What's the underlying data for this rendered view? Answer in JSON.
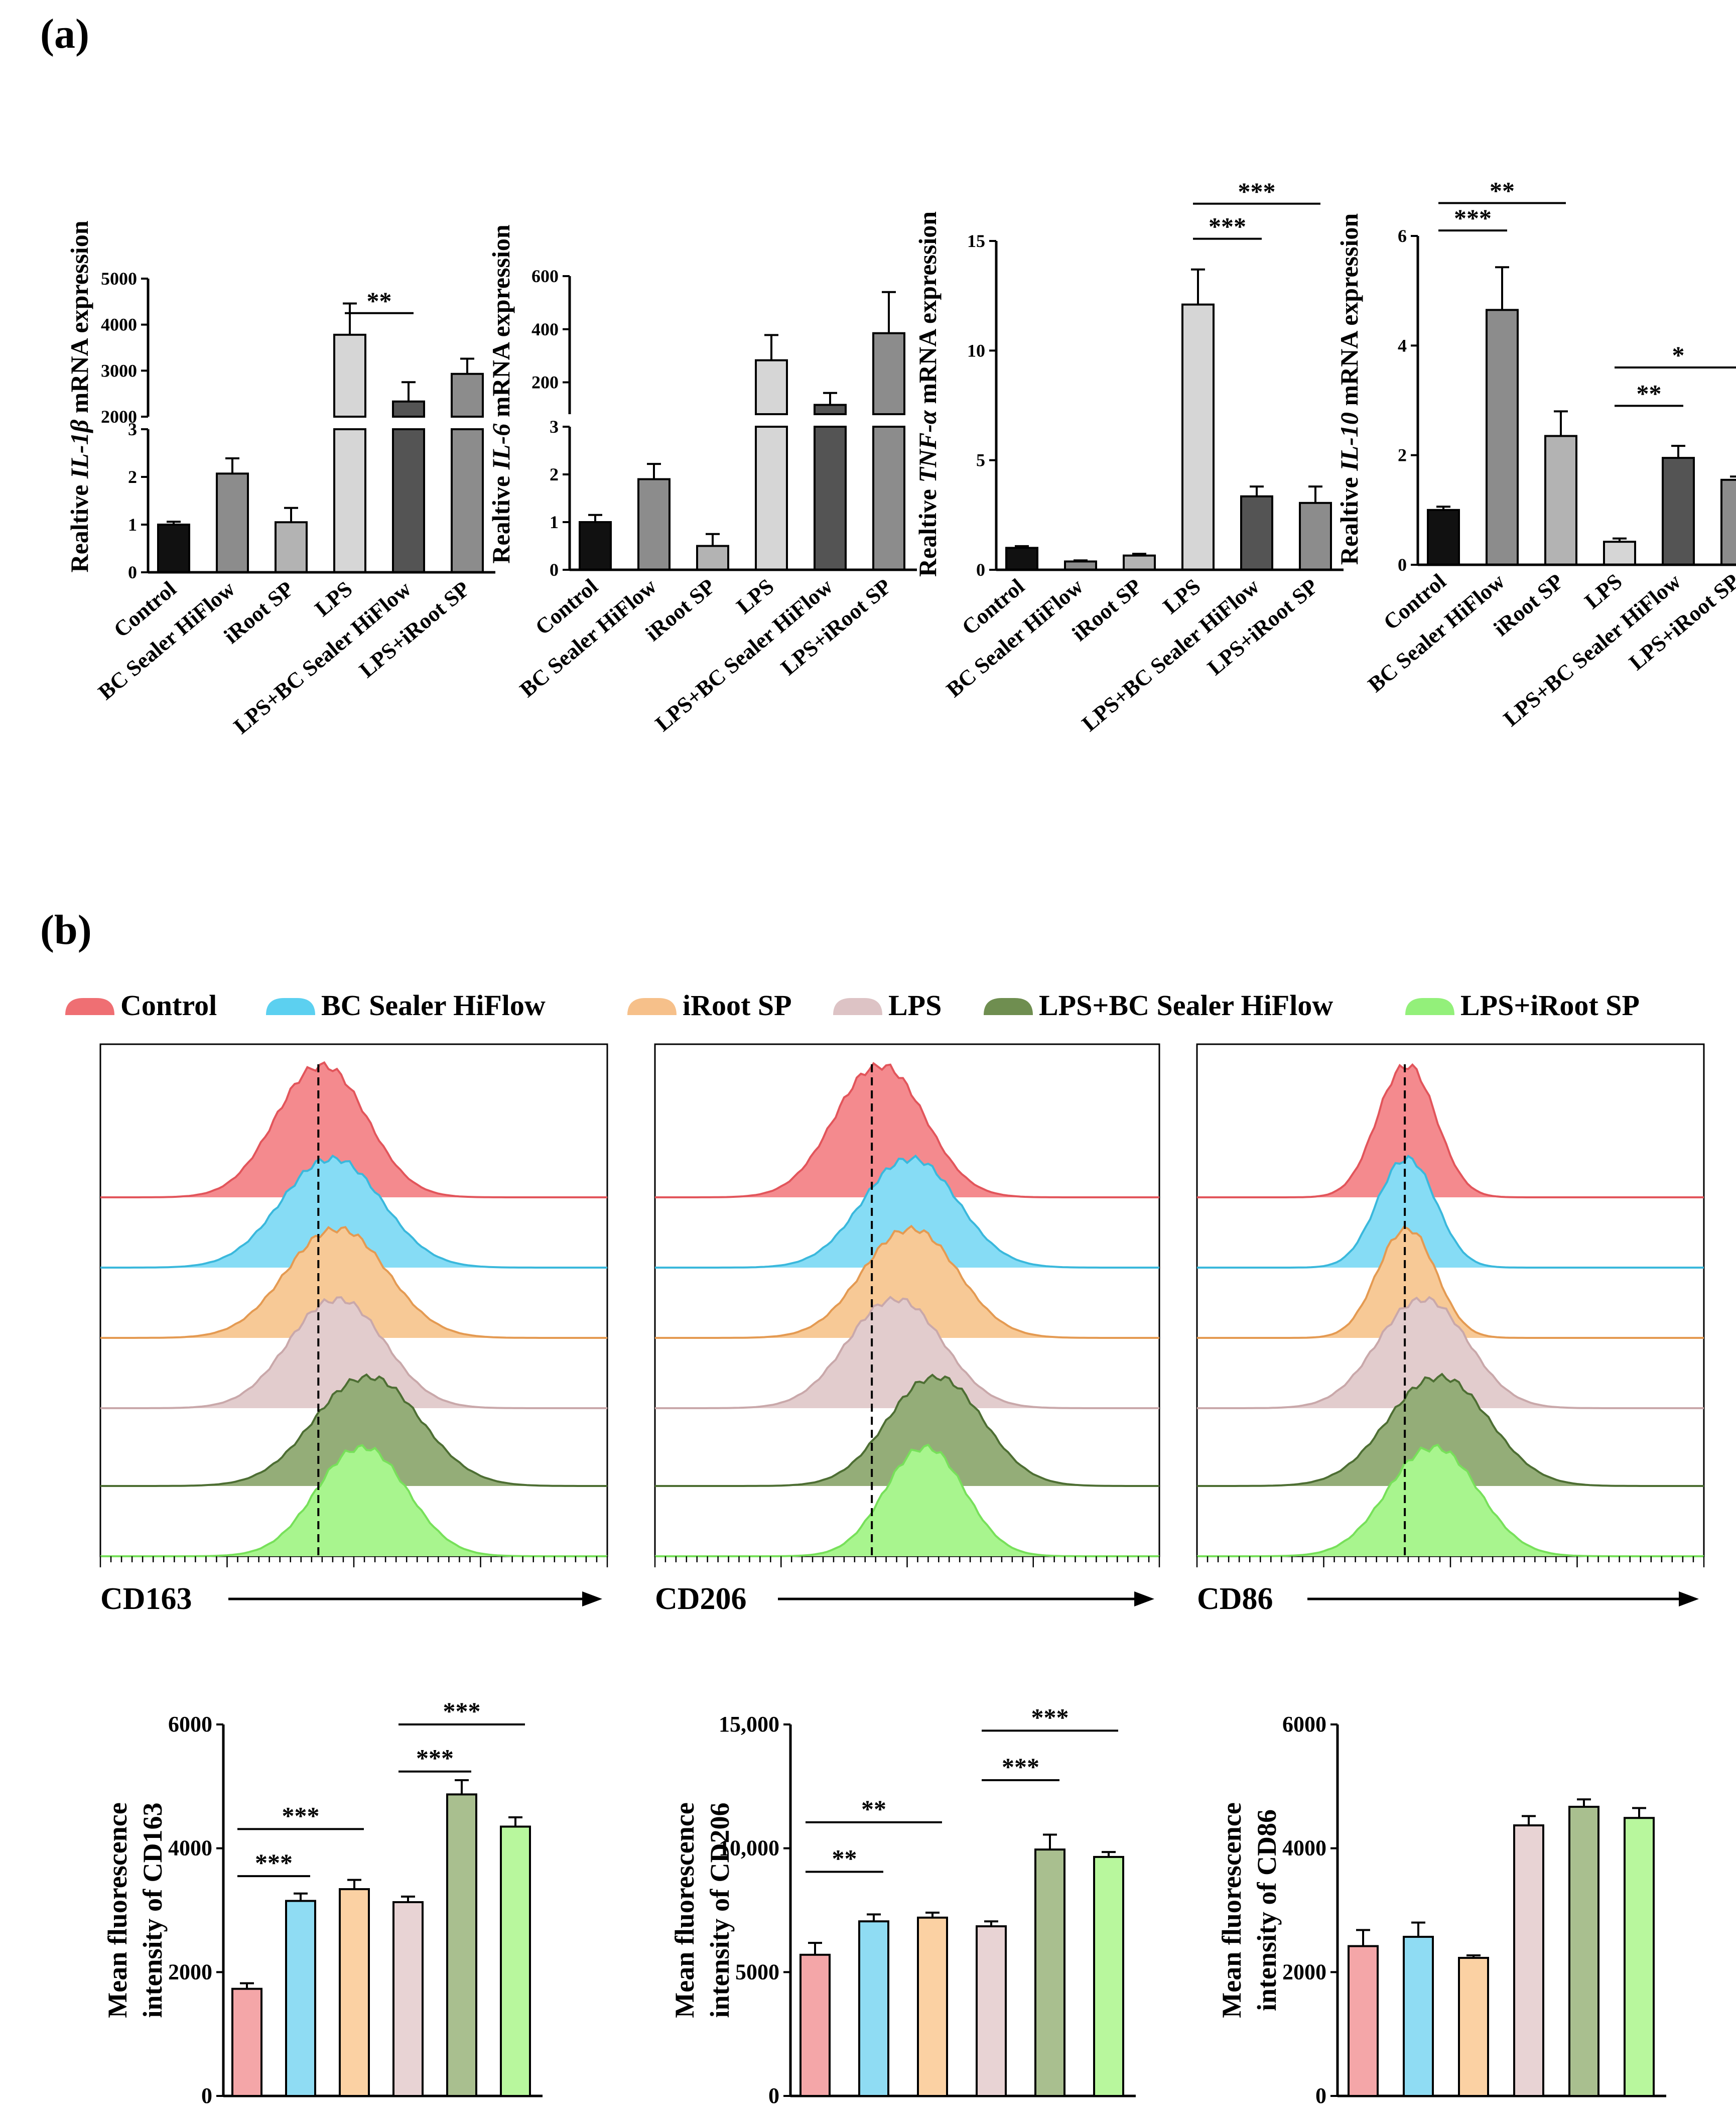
{
  "panel_labels": {
    "a": "(a)",
    "b": "(b)"
  },
  "groups": [
    "Control",
    "BC Sealer HiFlow",
    "iRoot SP",
    "LPS",
    "LPS+BC Sealer HiFlow",
    "LPS+iRoot SP"
  ],
  "group_colors": [
    "#f4a6a8",
    "#8fdcf3",
    "#fbd1a3",
    "#e8d3d4",
    "#a9bf8f",
    "#b8f79d"
  ],
  "legend": {
    "items": [
      "Control",
      "BC Sealer HiFlow",
      "iRoot SP",
      "LPS",
      "LPS+BC Sealer HiFlow",
      "LPS+iRoot SP"
    ],
    "colors": [
      "#ef6f73",
      "#5cd0f0",
      "#f6c08a",
      "#ddc3c5",
      "#6f8e50",
      "#93f07a"
    ]
  },
  "flow": {
    "panels": [
      {
        "marker": "CD163",
        "peaks": [
          0.43,
          0.45,
          0.46,
          0.46,
          0.52,
          0.51
        ],
        "widths": [
          0.085,
          0.095,
          0.095,
          0.09,
          0.1,
          0.085
        ],
        "ref_line": 0.43
      },
      {
        "marker": "CD206",
        "peaks": [
          0.44,
          0.5,
          0.5,
          0.47,
          0.55,
          0.53
        ],
        "widths": [
          0.085,
          0.09,
          0.09,
          0.09,
          0.09,
          0.075
        ],
        "ref_line": 0.43
      },
      {
        "marker": "CD86",
        "peaks": [
          0.41,
          0.41,
          0.41,
          0.44,
          0.47,
          0.46
        ],
        "widths": [
          0.055,
          0.055,
          0.055,
          0.085,
          0.095,
          0.085
        ],
        "ref_line": 0.41
      }
    ],
    "fill_colors": [
      "#f48a8e",
      "#86dcf5",
      "#f7c996",
      "#e2cccd",
      "#94ad78",
      "#a8f58e"
    ],
    "stroke_colors": [
      "#e2555b",
      "#3ab8dc",
      "#e49a52",
      "#c9a8aa",
      "#4d6e33",
      "#77e05a"
    ]
  },
  "chart_data": [
    {
      "type": "bar",
      "panel": "a",
      "title": "",
      "ylabel_parts": [
        "Realtive ",
        "IL-1β",
        " mRNA expression"
      ],
      "categories": [
        "Control",
        "BC Sealer HiFlow",
        "iRoot SP",
        "LPS",
        "LPS+BC Sealer HiFlow",
        "LPS+iRoot SP"
      ],
      "values": [
        1.0,
        2.07,
        1.05,
        3780,
        2330,
        2930
      ],
      "errors": [
        0.06,
        0.32,
        0.3,
        680,
        420,
        330
      ],
      "bar_colors": [
        "#111111",
        "#8c8c8c",
        "#b3b3b3",
        "#d6d6d6",
        "#545454",
        "#8c8c8c"
      ],
      "broken_axis": {
        "lower": [
          0,
          3
        ],
        "upper": [
          2000,
          5000
        ]
      },
      "ticks_lower": [
        {
          "v": 0,
          "label": "0"
        },
        {
          "v": 1,
          "label": "1"
        },
        {
          "v": 2,
          "label": "2"
        },
        {
          "v": 3,
          "label": "3"
        }
      ],
      "ticks_upper": [
        {
          "v": 2000,
          "label": "2000"
        },
        {
          "v": 3000,
          "label": "3000"
        },
        {
          "v": 4000,
          "label": "4000"
        },
        {
          "v": 5000,
          "label": "5000"
        }
      ],
      "significance": [
        {
          "from": 3,
          "to": 4,
          "label": "**",
          "y": 4250
        }
      ]
    },
    {
      "type": "bar",
      "panel": "a",
      "title": "",
      "ylabel_parts": [
        "Realtive ",
        "IL-6",
        " mRNA expression"
      ],
      "categories": [
        "Control",
        "BC Sealer HiFlow",
        "iRoot SP",
        "LPS",
        "LPS+BC Sealer HiFlow",
        "LPS+iRoot SP"
      ],
      "values": [
        1.0,
        1.9,
        0.5,
        283,
        115,
        385
      ],
      "errors": [
        0.15,
        0.32,
        0.25,
        95,
        45,
        155
      ],
      "bar_colors": [
        "#111111",
        "#8c8c8c",
        "#b3b3b3",
        "#d6d6d6",
        "#545454",
        "#8c8c8c"
      ],
      "broken_axis": {
        "lower": [
          0,
          3
        ],
        "upper": [
          80,
          600
        ]
      },
      "ticks_lower": [
        {
          "v": 0,
          "label": "0"
        },
        {
          "v": 1,
          "label": "1"
        },
        {
          "v": 2,
          "label": "2"
        },
        {
          "v": 3,
          "label": "3"
        }
      ],
      "ticks_upper": [
        {
          "v": 200,
          "label": "200"
        },
        {
          "v": 400,
          "label": "400"
        },
        {
          "v": 600,
          "label": "600"
        }
      ],
      "significance": []
    },
    {
      "type": "bar",
      "panel": "a",
      "title": "",
      "ylabel_parts": [
        "Realtive ",
        "TNF-α",
        " mRNA expression"
      ],
      "categories": [
        "Control",
        "BC Sealer HiFlow",
        "iRoot SP",
        "LPS",
        "LPS+BC Sealer HiFlow",
        "LPS+iRoot SP"
      ],
      "values": [
        1.0,
        0.38,
        0.65,
        12.1,
        3.35,
        3.05
      ],
      "errors": [
        0.08,
        0.05,
        0.08,
        1.6,
        0.45,
        0.75
      ],
      "bar_colors": [
        "#111111",
        "#8c8c8c",
        "#b3b3b3",
        "#d6d6d6",
        "#545454",
        "#8c8c8c"
      ],
      "ylim": [
        0,
        15
      ],
      "ticks": [
        {
          "v": 0,
          "label": "0"
        },
        {
          "v": 5,
          "label": "5"
        },
        {
          "v": 10,
          "label": "10"
        },
        {
          "v": 15,
          "label": "15"
        }
      ],
      "significance": [
        {
          "from": 3,
          "to": 4,
          "label": "***",
          "y": 15.1
        },
        {
          "from": 3,
          "to": 5,
          "label": "***",
          "y": 16.7
        }
      ]
    },
    {
      "type": "bar",
      "panel": "a",
      "title": "",
      "ylabel_parts": [
        "Realtive ",
        "IL-10",
        " mRNA expression"
      ],
      "categories": [
        "Control",
        "BC Sealer HiFlow",
        "iRoot SP",
        "LPS",
        "LPS+BC Sealer HiFlow",
        "LPS+iRoot SP"
      ],
      "values": [
        1.0,
        4.65,
        2.35,
        0.42,
        1.95,
        1.55
      ],
      "errors": [
        0.06,
        0.78,
        0.45,
        0.06,
        0.22,
        0.06
      ],
      "bar_colors": [
        "#111111",
        "#8c8c8c",
        "#b3b3b3",
        "#d6d6d6",
        "#545454",
        "#8c8c8c"
      ],
      "ylim": [
        0,
        6
      ],
      "ticks": [
        {
          "v": 0,
          "label": "0"
        },
        {
          "v": 2,
          "label": "2"
        },
        {
          "v": 4,
          "label": "4"
        },
        {
          "v": 6,
          "label": "6"
        }
      ],
      "significance": [
        {
          "from": 0,
          "to": 1,
          "label": "***",
          "y": 6.1
        },
        {
          "from": 0,
          "to": 2,
          "label": "**",
          "y": 6.6
        },
        {
          "from": 3,
          "to": 4,
          "label": "**",
          "y": 2.9
        },
        {
          "from": 3,
          "to": 5,
          "label": "*",
          "y": 3.6
        }
      ]
    },
    {
      "type": "bar",
      "panel": "b",
      "title": "",
      "ylabel_lines": [
        "Mean fluorescence",
        "intensity of CD163"
      ],
      "categories": [
        "Control",
        "BC Sealer HiFlow",
        "iRoot SP",
        "LPS",
        "LPS+BC Sealer HiFlow",
        "LPS+iRoot SP"
      ],
      "values": [
        1730,
        3150,
        3340,
        3130,
        4870,
        4350
      ],
      "errors": [
        90,
        120,
        150,
        90,
        230,
        150
      ],
      "ylim": [
        0,
        6000
      ],
      "ticks": [
        {
          "v": 0,
          "label": "0"
        },
        {
          "v": 2000,
          "label": "2000"
        },
        {
          "v": 4000,
          "label": "4000"
        },
        {
          "v": 6000,
          "label": "6000"
        }
      ],
      "significance": [
        {
          "from": 0,
          "to": 1,
          "label": "***",
          "y": 3550
        },
        {
          "from": 0,
          "to": 2,
          "label": "***",
          "y": 4310
        },
        {
          "from": 3,
          "to": 4,
          "label": "***",
          "y": 5240
        },
        {
          "from": 3,
          "to": 5,
          "label": "***",
          "y": 6000
        }
      ]
    },
    {
      "type": "bar",
      "panel": "b",
      "title": "",
      "ylabel_lines": [
        "Mean fluorescence",
        "intensity of CD206"
      ],
      "categories": [
        "Control",
        "BC Sealer HiFlow",
        "iRoot SP",
        "LPS",
        "LPS+BC Sealer HiFlow",
        "LPS+iRoot SP"
      ],
      "values": [
        5700,
        7050,
        7200,
        6850,
        9950,
        9650
      ],
      "errors": [
        480,
        280,
        200,
        200,
        600,
        200
      ],
      "ylim": [
        0,
        15000
      ],
      "ticks": [
        {
          "v": 0,
          "label": "0"
        },
        {
          "v": 5000,
          "label": "5000"
        },
        {
          "v": 10000,
          "label": "10,000"
        },
        {
          "v": 15000,
          "label": "15,000"
        }
      ],
      "significance": [
        {
          "from": 0,
          "to": 1,
          "label": "**",
          "y": 9050
        },
        {
          "from": 0,
          "to": 2,
          "label": "**",
          "y": 11050
        },
        {
          "from": 3,
          "to": 4,
          "label": "***",
          "y": 12750
        },
        {
          "from": 3,
          "to": 5,
          "label": "***",
          "y": 14750
        }
      ]
    },
    {
      "type": "bar",
      "panel": "b",
      "title": "",
      "ylabel_lines": [
        "Mean fluorescence",
        "intensity of CD86"
      ],
      "categories": [
        "Control",
        "BC Sealer HiFlow",
        "iRoot SP",
        "LPS",
        "LPS+BC Sealer HiFlow",
        "LPS+iRoot SP"
      ],
      "values": [
        2420,
        2570,
        2230,
        4370,
        4670,
        4490
      ],
      "errors": [
        260,
        230,
        40,
        150,
        120,
        160
      ],
      "ylim": [
        0,
        6000
      ],
      "ticks": [
        {
          "v": 0,
          "label": "0"
        },
        {
          "v": 2000,
          "label": "2000"
        },
        {
          "v": 4000,
          "label": "4000"
        },
        {
          "v": 6000,
          "label": "6000"
        }
      ],
      "significance": []
    }
  ]
}
